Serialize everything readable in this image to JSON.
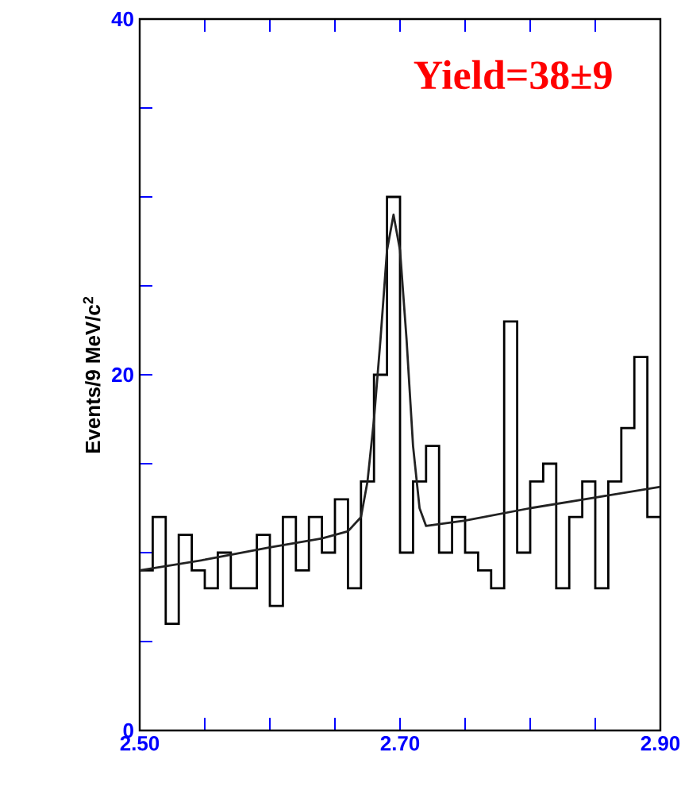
{
  "chart_data": {
    "type": "histogram",
    "ylabel": "Events/9 MeV/c$^{2}$",
    "annotations": [
      "Yield=38±9"
    ],
    "bins": [
      2.5,
      2.51,
      2.52,
      2.53,
      2.54,
      2.55,
      2.56,
      2.57,
      2.58,
      2.59,
      2.6,
      2.61,
      2.62,
      2.63,
      2.64,
      2.65,
      2.66,
      2.67,
      2.68,
      2.69,
      2.7,
      2.71,
      2.72,
      2.73,
      2.74,
      2.75,
      2.76,
      2.77,
      2.78,
      2.79,
      2.8,
      2.81,
      2.82,
      2.83,
      2.84,
      2.85,
      2.86,
      2.87,
      2.88,
      2.89,
      2.9
    ],
    "values": [
      9,
      12,
      6,
      11,
      9,
      8,
      10,
      8,
      8,
      11,
      7,
      12,
      9,
      12,
      10,
      13,
      8,
      14,
      20,
      30,
      10,
      14,
      16,
      10,
      12,
      10,
      9,
      8,
      23,
      10,
      14,
      15,
      8,
      12,
      14,
      8,
      14,
      17,
      21,
      12
    ],
    "color": "#000000",
    "series": [
      {
        "type": "line",
        "color": "#222222",
        "x": [
          2.5,
          2.55,
          2.6,
          2.64,
          2.66,
          2.67,
          2.675,
          2.68,
          2.685,
          2.69,
          2.695,
          2.7,
          2.705,
          2.71,
          2.715,
          2.72,
          2.75,
          2.8,
          2.85,
          2.9
        ],
        "values": [
          9.0,
          9.6,
          10.3,
          10.8,
          11.2,
          12,
          14,
          17.5,
          22,
          27,
          29,
          27,
          22,
          16,
          12.5,
          11.5,
          11.8,
          12.5,
          13.1,
          13.7
        ]
      }
    ],
    "xlim": [
      2.5,
      2.9
    ],
    "ylim": [
      0,
      40
    ],
    "xticks": [
      {
        "value": 2.5,
        "label": "2.50"
      },
      {
        "value": 2.55,
        "label": null
      },
      {
        "value": 2.6,
        "label": null
      },
      {
        "value": 2.65,
        "label": null
      },
      {
        "value": 2.7,
        "label": "2.70"
      },
      {
        "value": 2.75,
        "label": null
      },
      {
        "value": 2.8,
        "label": null
      },
      {
        "value": 2.85,
        "label": null
      },
      {
        "value": 2.9,
        "label": "2.90"
      }
    ],
    "yticks": [
      0,
      {
        "value": 5,
        "label": null
      },
      {
        "value": 10,
        "label": null
      },
      {
        "value": 15,
        "label": null
      },
      20,
      {
        "value": 25,
        "label": null
      },
      {
        "value": 30,
        "label": null
      },
      {
        "value": 35,
        "label": null
      },
      40
    ]
  }
}
